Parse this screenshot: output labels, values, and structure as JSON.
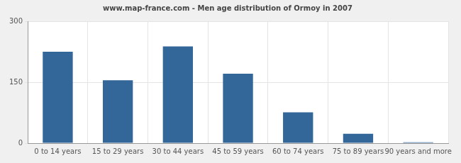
{
  "chart_data": {
    "type": "bar",
    "title": "www.map-france.com - Men age distribution of Ormoy in 2007",
    "categories": [
      "0 to 14 years",
      "15 to 29 years",
      "30 to 44 years",
      "45 to 59 years",
      "60 to 74 years",
      "75 to 89 years",
      "90 years and more"
    ],
    "values": [
      225,
      155,
      238,
      171,
      76,
      23,
      2
    ],
    "color": "#336699",
    "ylim": [
      0,
      300
    ],
    "yticks": [
      0,
      150,
      300
    ],
    "grid": true
  }
}
